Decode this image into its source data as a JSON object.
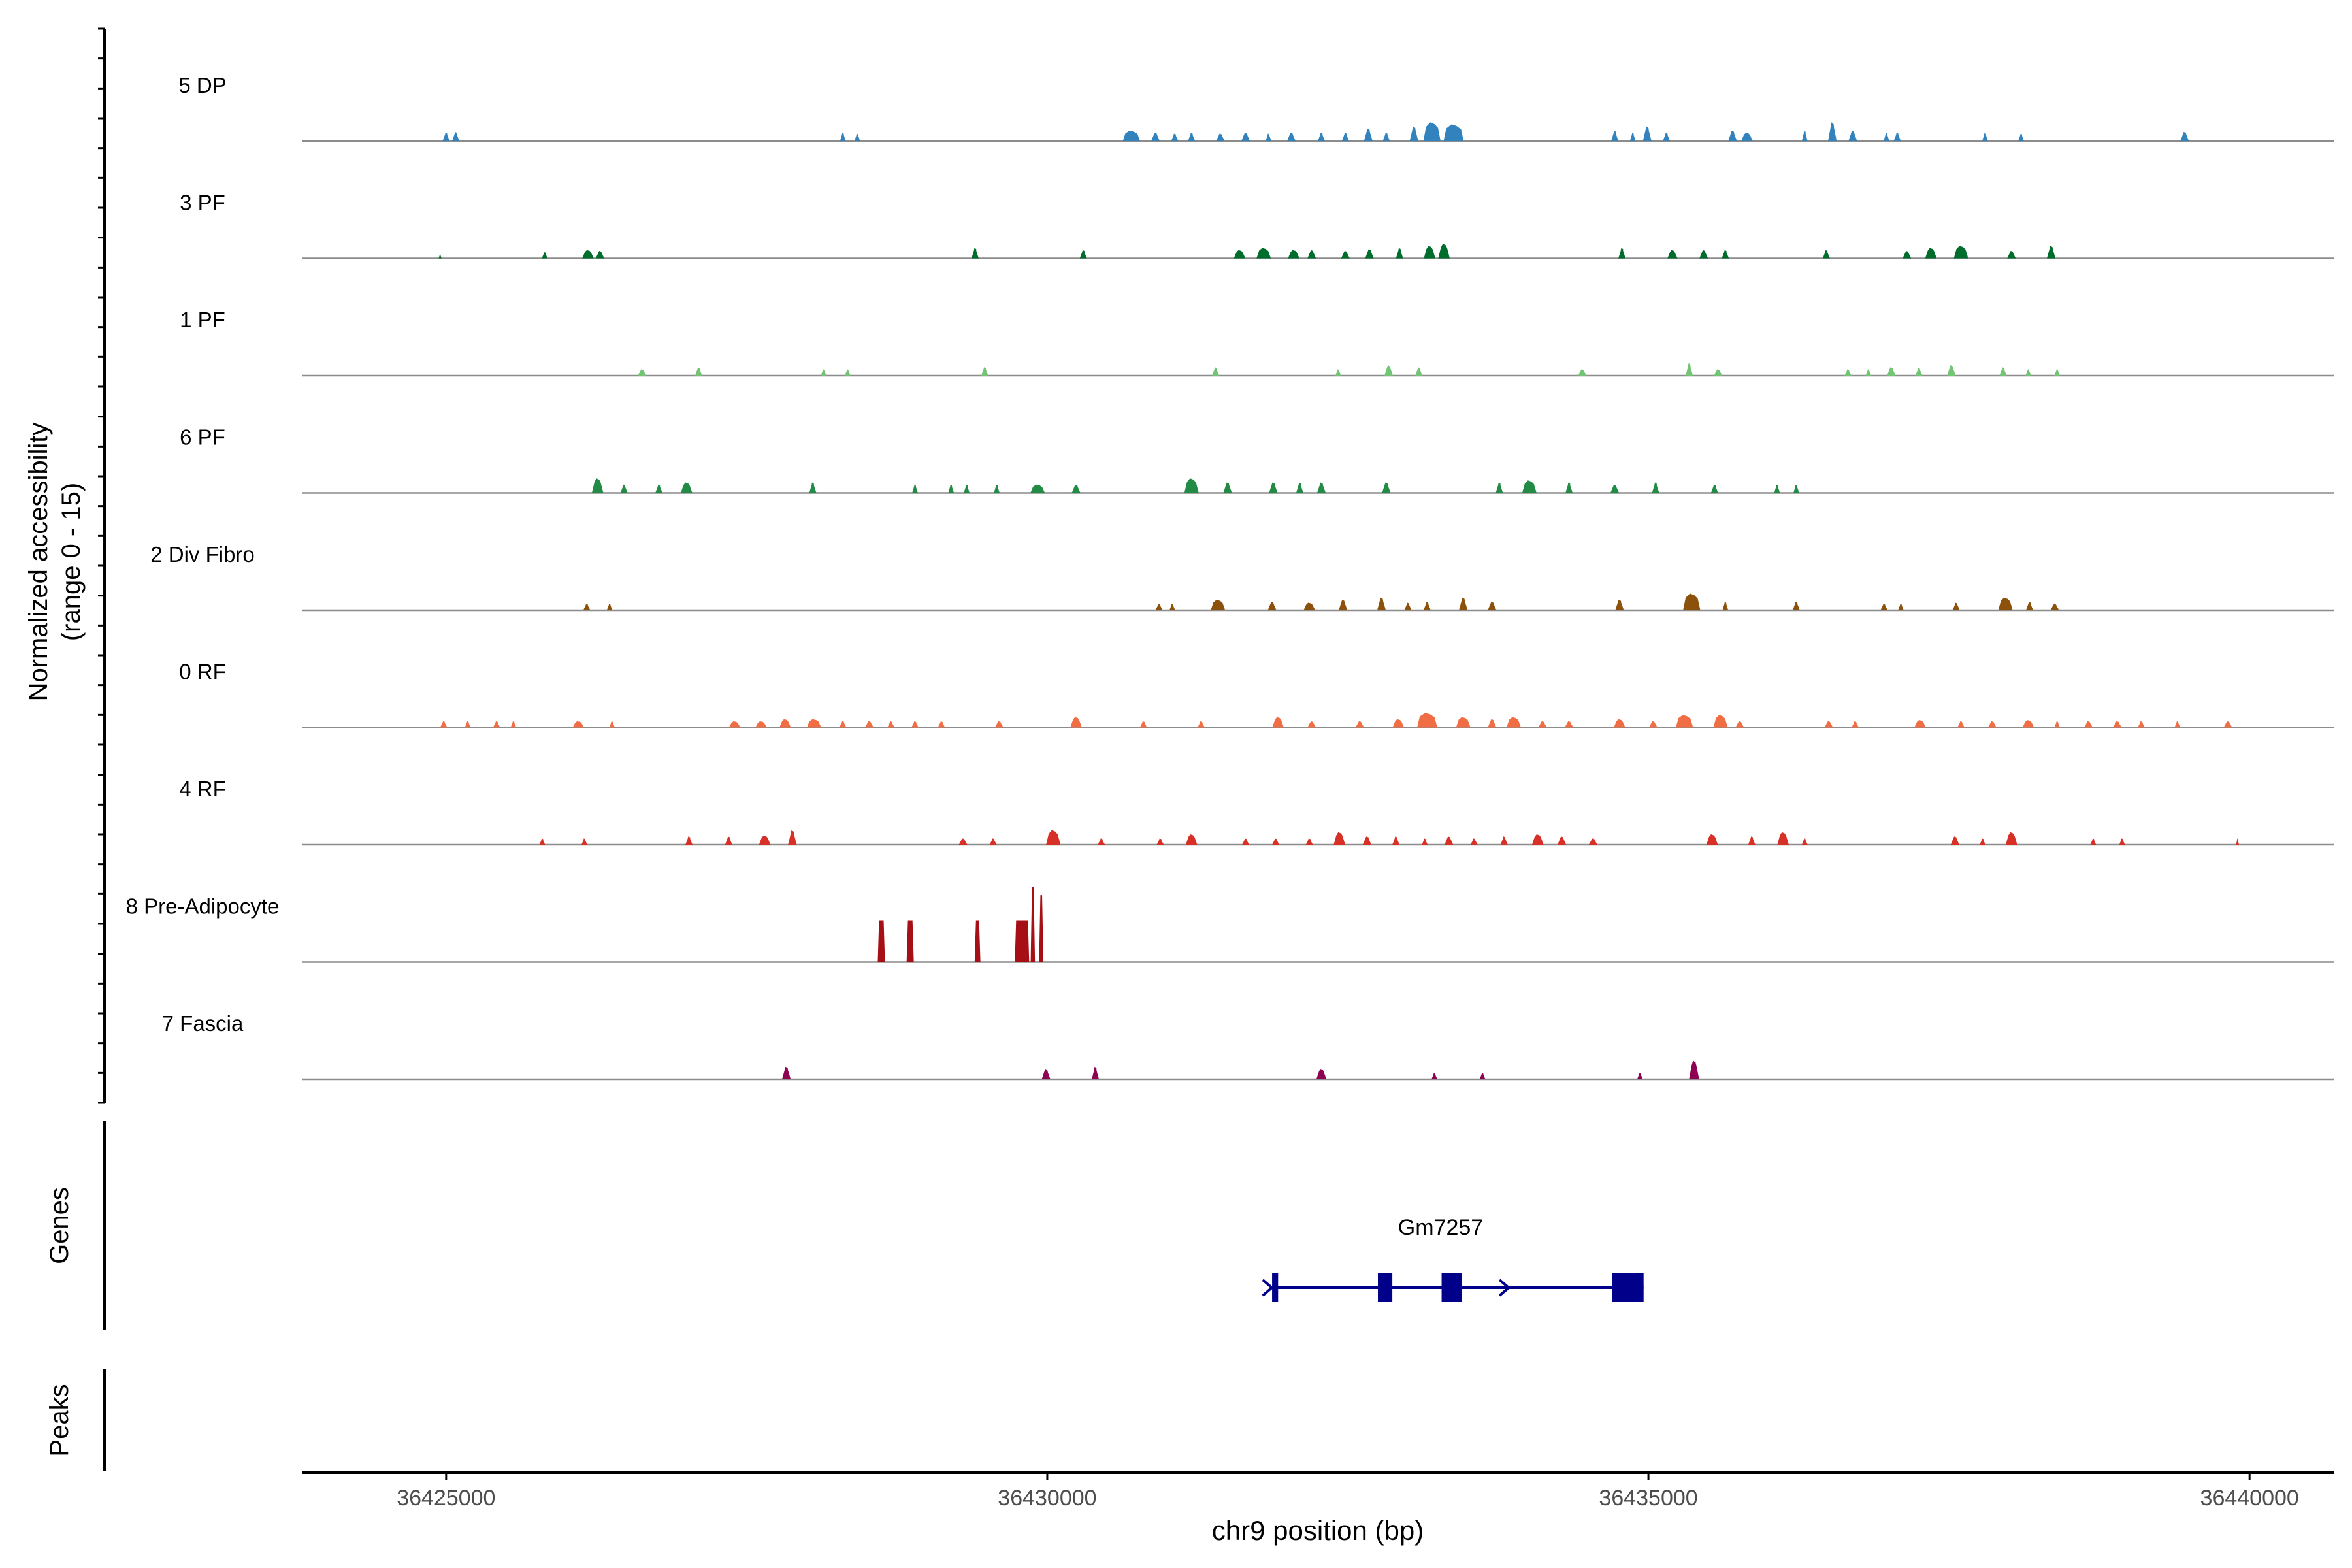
{
  "chart_data": {
    "type": "area",
    "title": "",
    "xlabel": "chr9 position (bp)",
    "ylabel_line1": "Normalized accessibility",
    "ylabel_line2": "(range 0 - 15)",
    "y_range": [
      0,
      15
    ],
    "xlim": [
      36423800,
      36440700
    ],
    "x_ticks": [
      36425000,
      36430000,
      36435000,
      36440000
    ],
    "x_tick_labels": [
      "36425000",
      "36430000",
      "36435000",
      "36440000"
    ],
    "panels": {
      "genes_label": "Genes",
      "peaks_label": "Peaks"
    },
    "tracks": [
      {
        "name": "5 DP",
        "color": "#3182BD",
        "peaks": [
          [
            36425000,
            5,
            2
          ],
          [
            36425080,
            5,
            2.2
          ],
          [
            36428300,
            4,
            2
          ],
          [
            36428420,
            4,
            1.8
          ],
          [
            36430700,
            12,
            2.5
          ],
          [
            36430900,
            6,
            2
          ],
          [
            36431060,
            5,
            1.8
          ],
          [
            36431200,
            5,
            2
          ],
          [
            36431440,
            6,
            1.8
          ],
          [
            36431650,
            6,
            2
          ],
          [
            36431840,
            4,
            1.8
          ],
          [
            36432030,
            6,
            2
          ],
          [
            36432280,
            5,
            2
          ],
          [
            36432480,
            5,
            2
          ],
          [
            36432670,
            6,
            3
          ],
          [
            36432820,
            5,
            2
          ],
          [
            36433050,
            6,
            3.5
          ],
          [
            36433200,
            12,
            4.5
          ],
          [
            36433380,
            14,
            4
          ],
          [
            36434720,
            5,
            2.5
          ],
          [
            36434870,
            4,
            2
          ],
          [
            36434990,
            6,
            3.5
          ],
          [
            36435150,
            5,
            2
          ],
          [
            36435700,
            6,
            2.5
          ],
          [
            36435820,
            8,
            2
          ],
          [
            36436300,
            4,
            2.5
          ],
          [
            36436530,
            6,
            4.5
          ],
          [
            36436700,
            6,
            2.5
          ],
          [
            36436980,
            4,
            2
          ],
          [
            36437070,
            5,
            2
          ],
          [
            36437800,
            4,
            2
          ],
          [
            36438100,
            4,
            1.8
          ],
          [
            36439460,
            6,
            2.2
          ]
        ]
      },
      {
        "name": "3 PF",
        "color": "#006D2C",
        "peaks": [
          [
            36424950,
            2,
            1
          ],
          [
            36425820,
            4,
            1.5
          ],
          [
            36426180,
            8,
            2
          ],
          [
            36426280,
            6,
            1.8
          ],
          [
            36429400,
            5,
            2.5
          ],
          [
            36430300,
            5,
            2
          ],
          [
            36431600,
            8,
            2
          ],
          [
            36431800,
            10,
            2.5
          ],
          [
            36432050,
            8,
            2
          ],
          [
            36432200,
            6,
            2
          ],
          [
            36432480,
            6,
            1.8
          ],
          [
            36432680,
            6,
            2.2
          ],
          [
            36432930,
            5,
            2.5
          ],
          [
            36433180,
            8,
            3
          ],
          [
            36433300,
            8,
            3.5
          ],
          [
            36434780,
            5,
            2.5
          ],
          [
            36435200,
            7,
            2
          ],
          [
            36435460,
            6,
            2
          ],
          [
            36435640,
            5,
            2
          ],
          [
            36436480,
            5,
            2
          ],
          [
            36437150,
            6,
            1.8
          ],
          [
            36437350,
            8,
            2.5
          ],
          [
            36437600,
            10,
            3
          ],
          [
            36438020,
            6,
            1.8
          ],
          [
            36438350,
            6,
            3
          ]
        ]
      },
      {
        "name": "1 PF",
        "color": "#74C476",
        "peaks": [
          [
            36426630,
            6,
            1.5
          ],
          [
            36427100,
            5,
            2
          ],
          [
            36428140,
            4,
            1.5
          ],
          [
            36428340,
            4,
            1.5
          ],
          [
            36429480,
            5,
            2
          ],
          [
            36431400,
            5,
            2
          ],
          [
            36432420,
            4,
            1.5
          ],
          [
            36432840,
            6,
            2.5
          ],
          [
            36433090,
            5,
            2
          ],
          [
            36434450,
            6,
            1.5
          ],
          [
            36435340,
            5,
            3
          ],
          [
            36435580,
            6,
            1.5
          ],
          [
            36436660,
            5,
            1.5
          ],
          [
            36436830,
            4,
            1.5
          ],
          [
            36437020,
            6,
            2
          ],
          [
            36437250,
            5,
            1.8
          ],
          [
            36437520,
            6,
            2.5
          ],
          [
            36437950,
            5,
            2
          ],
          [
            36438160,
            4,
            1.5
          ],
          [
            36438400,
            4,
            1.5
          ]
        ]
      },
      {
        "name": "6 PF",
        "color": "#238B45",
        "peaks": [
          [
            36426260,
            8,
            3.5
          ],
          [
            36426480,
            5,
            2
          ],
          [
            36426770,
            5,
            2
          ],
          [
            36427000,
            8,
            2.5
          ],
          [
            36428050,
            5,
            2.5
          ],
          [
            36428900,
            4,
            2
          ],
          [
            36429200,
            4,
            2
          ],
          [
            36429330,
            4,
            2
          ],
          [
            36429580,
            4,
            2
          ],
          [
            36429920,
            10,
            2
          ],
          [
            36430240,
            6,
            2
          ],
          [
            36431200,
            10,
            3.5
          ],
          [
            36431500,
            6,
            2.5
          ],
          [
            36431880,
            6,
            2.5
          ],
          [
            36432100,
            5,
            2.5
          ],
          [
            36432280,
            6,
            2.5
          ],
          [
            36432820,
            6,
            2.5
          ],
          [
            36433760,
            5,
            2.5
          ],
          [
            36434010,
            10,
            3
          ],
          [
            36434340,
            5,
            2.5
          ],
          [
            36434720,
            6,
            2
          ],
          [
            36435060,
            5,
            2.5
          ],
          [
            36435550,
            5,
            2
          ],
          [
            36436070,
            4,
            2
          ],
          [
            36436230,
            4,
            2
          ]
        ]
      },
      {
        "name": "2 Div Fibro",
        "color": "#8C510A",
        "peaks": [
          [
            36426170,
            5,
            1.5
          ],
          [
            36426360,
            4,
            1.5
          ],
          [
            36430930,
            5,
            1.5
          ],
          [
            36431040,
            4,
            1.5
          ],
          [
            36431420,
            10,
            2.5
          ],
          [
            36431870,
            6,
            2
          ],
          [
            36432180,
            8,
            1.8
          ],
          [
            36432460,
            6,
            2.5
          ],
          [
            36432780,
            6,
            3
          ],
          [
            36433000,
            5,
            1.8
          ],
          [
            36433160,
            5,
            2
          ],
          [
            36433460,
            6,
            3
          ],
          [
            36433700,
            6,
            2
          ],
          [
            36434760,
            6,
            2.5
          ],
          [
            36435360,
            12,
            4
          ],
          [
            36435640,
            4,
            2
          ],
          [
            36436230,
            5,
            2
          ],
          [
            36436960,
            5,
            1.5
          ],
          [
            36437100,
            4,
            1.5
          ],
          [
            36437560,
            5,
            1.8
          ],
          [
            36437970,
            10,
            3
          ],
          [
            36438170,
            5,
            2
          ],
          [
            36438380,
            6,
            1.5
          ]
        ]
      },
      {
        "name": "0 RF",
        "color": "#F16D43",
        "peaks": [
          [
            36424980,
            5,
            1.5
          ],
          [
            36425180,
            4,
            1.5
          ],
          [
            36425420,
            5,
            1.5
          ],
          [
            36425560,
            4,
            1.5
          ],
          [
            36426100,
            8,
            1.5
          ],
          [
            36426380,
            4,
            1.5
          ],
          [
            36427400,
            8,
            1.5
          ],
          [
            36427620,
            8,
            1.5
          ],
          [
            36427820,
            8,
            2
          ],
          [
            36428060,
            10,
            2
          ],
          [
            36428300,
            5,
            1.5
          ],
          [
            36428520,
            6,
            1.5
          ],
          [
            36428700,
            5,
            1.5
          ],
          [
            36428900,
            5,
            1.5
          ],
          [
            36429120,
            5,
            1.5
          ],
          [
            36429600,
            6,
            1.5
          ],
          [
            36430240,
            8,
            2.5
          ],
          [
            36430800,
            5,
            1.5
          ],
          [
            36431280,
            5,
            1.5
          ],
          [
            36431920,
            8,
            2.5
          ],
          [
            36432200,
            6,
            1.5
          ],
          [
            36432600,
            6,
            1.5
          ],
          [
            36432920,
            8,
            2
          ],
          [
            36433160,
            14,
            3.5
          ],
          [
            36433460,
            10,
            2.5
          ],
          [
            36433700,
            6,
            2
          ],
          [
            36433880,
            10,
            2.5
          ],
          [
            36434120,
            6,
            1.5
          ],
          [
            36434340,
            6,
            1.5
          ],
          [
            36434760,
            8,
            2
          ],
          [
            36435040,
            6,
            1.5
          ],
          [
            36435300,
            12,
            3
          ],
          [
            36435600,
            10,
            3
          ],
          [
            36435760,
            6,
            1.5
          ],
          [
            36436500,
            6,
            1.5
          ],
          [
            36436720,
            5,
            1.5
          ],
          [
            36437260,
            8,
            1.8
          ],
          [
            36437600,
            5,
            1.5
          ],
          [
            36437860,
            6,
            1.5
          ],
          [
            36438160,
            8,
            1.8
          ],
          [
            36438400,
            4,
            1.5
          ],
          [
            36438660,
            6,
            1.5
          ],
          [
            36438900,
            6,
            1.5
          ],
          [
            36439100,
            5,
            1.5
          ],
          [
            36439400,
            4,
            1.5
          ],
          [
            36439820,
            6,
            1.5
          ]
        ]
      },
      {
        "name": "4 RF",
        "color": "#D73027",
        "peaks": [
          [
            36425800,
            4,
            1.5
          ],
          [
            36426150,
            4,
            1.5
          ],
          [
            36427020,
            5,
            2
          ],
          [
            36427350,
            5,
            2
          ],
          [
            36427650,
            8,
            2.2
          ],
          [
            36427880,
            6,
            3.5
          ],
          [
            36429300,
            6,
            1.5
          ],
          [
            36429550,
            5,
            1.5
          ],
          [
            36430050,
            10,
            3.5
          ],
          [
            36430450,
            5,
            1.5
          ],
          [
            36430940,
            5,
            1.5
          ],
          [
            36431200,
            8,
            2.5
          ],
          [
            36431650,
            5,
            1.5
          ],
          [
            36431900,
            5,
            1.5
          ],
          [
            36432180,
            5,
            1.5
          ],
          [
            36432430,
            8,
            3
          ],
          [
            36432660,
            6,
            2
          ],
          [
            36432900,
            5,
            2
          ],
          [
            36433140,
            4,
            1.5
          ],
          [
            36433340,
            6,
            2
          ],
          [
            36433550,
            5,
            1.5
          ],
          [
            36433800,
            5,
            2
          ],
          [
            36434080,
            8,
            2.5
          ],
          [
            36434280,
            6,
            2
          ],
          [
            36434540,
            6,
            1.5
          ],
          [
            36435530,
            8,
            2.5
          ],
          [
            36435860,
            5,
            2
          ],
          [
            36436120,
            8,
            3
          ],
          [
            36436300,
            4,
            1.5
          ],
          [
            36437550,
            6,
            2
          ],
          [
            36437780,
            4,
            1.5
          ],
          [
            36438020,
            8,
            3
          ],
          [
            36438700,
            4,
            1.5
          ],
          [
            36438940,
            4,
            1.5
          ],
          [
            36439900,
            2,
            1.5
          ]
        ]
      },
      {
        "name": "8 Pre-Adipocyte",
        "color": "#A50F15",
        "peaks": [
          [
            36428620,
            5,
            10
          ],
          [
            36428860,
            5,
            10
          ],
          [
            36429420,
            4,
            10
          ],
          [
            36429790,
            10,
            10
          ],
          [
            36429880,
            3,
            18
          ],
          [
            36429950,
            3,
            16
          ]
        ]
      },
      {
        "name": "7 Fascia",
        "color": "#8E0152",
        "peaks": [
          [
            36427830,
            6,
            3
          ],
          [
            36429990,
            6,
            2.5
          ],
          [
            36430400,
            5,
            3
          ],
          [
            36432280,
            7,
            2.5
          ],
          [
            36433220,
            4,
            1.5
          ],
          [
            36433620,
            4,
            1.5
          ],
          [
            36434930,
            4,
            1.5
          ],
          [
            36435380,
            7,
            4.5
          ]
        ]
      }
    ],
    "gene": {
      "name": "Gm7257",
      "color": "#00008B",
      "start": 36431870,
      "end": 36434960,
      "strand": "+",
      "exons": [
        [
          36431870,
          36431920
        ],
        [
          36432750,
          36432870
        ],
        [
          36433280,
          36433450
        ],
        [
          36434700,
          36434960
        ]
      ],
      "arrows": [
        36431830,
        36433800
      ]
    }
  }
}
